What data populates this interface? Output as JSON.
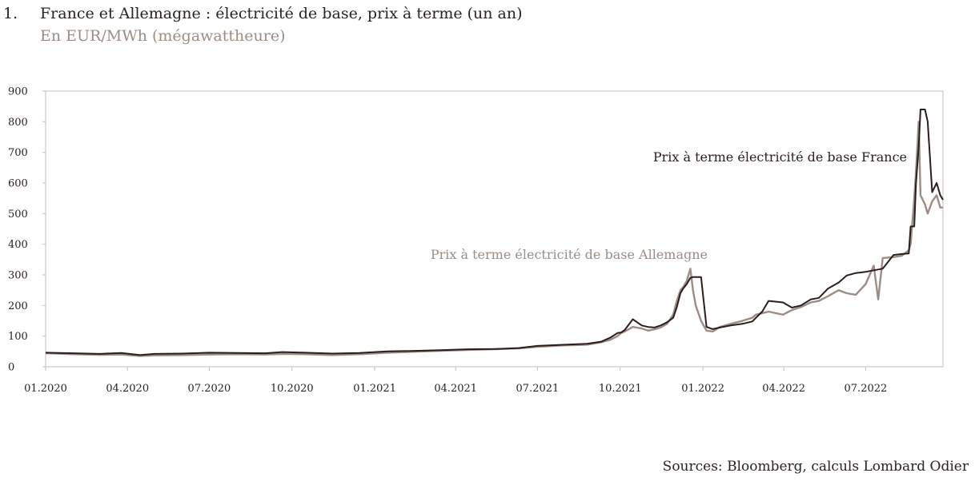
{
  "figure": {
    "number": "1.",
    "title": "France et Allemagne : électricité de base, prix à terme (un an)",
    "subtitle": "En EUR/MWh (mégawattheure)",
    "source": "Sources: Bloomberg, calculs Lombard Odier"
  },
  "chart_data": {
    "type": "line",
    "title": "France et Allemagne : électricité de base, prix à terme (un an)",
    "ylabel": "En EUR/MWh (mégawattheure)",
    "xlim": [
      "2020-01",
      "2022-09-25"
    ],
    "ylim": [
      0,
      900
    ],
    "yticks": [
      0,
      100,
      200,
      300,
      400,
      500,
      600,
      700,
      800,
      900
    ],
    "xticks": [
      "01.2020",
      "04.2020",
      "07.2020",
      "10.2020",
      "01.2021",
      "04.2021",
      "07.2021",
      "10.2021",
      "01.2022",
      "04.2022",
      "07.2022"
    ],
    "grid": false,
    "colors": {
      "france": "#2b1d1b",
      "allemagne": "#9b8d86",
      "axis": "#c9bdb6"
    },
    "series": [
      {
        "name": "Prix à terme électricité de base France",
        "x": [
          "2020-01-01",
          "2020-02-01",
          "2020-03-01",
          "2020-03-25",
          "2020-04-15",
          "2020-05-01",
          "2020-06-01",
          "2020-07-01",
          "2020-08-01",
          "2020-09-01",
          "2020-09-20",
          "2020-10-15",
          "2020-11-15",
          "2020-12-15",
          "2021-01-15",
          "2021-02-15",
          "2021-03-15",
          "2021-04-15",
          "2021-05-15",
          "2021-06-10",
          "2021-07-01",
          "2021-08-01",
          "2021-08-25",
          "2021-09-10",
          "2021-09-20",
          "2021-09-28",
          "2021-10-02",
          "2021-10-06",
          "2021-10-15",
          "2021-10-25",
          "2021-11-01",
          "2021-11-08",
          "2021-11-15",
          "2021-11-22",
          "2021-11-29",
          "2021-12-03",
          "2021-12-07",
          "2021-12-10",
          "2021-12-14",
          "2021-12-18",
          "2021-12-21",
          "2021-12-24",
          "2021-12-30",
          "2022-01-05",
          "2022-01-12",
          "2022-01-20",
          "2022-02-01",
          "2022-02-14",
          "2022-02-25",
          "2022-03-01",
          "2022-03-08",
          "2022-03-15",
          "2022-03-31",
          "2022-04-10",
          "2022-04-20",
          "2022-05-01",
          "2022-05-10",
          "2022-05-20",
          "2022-06-01",
          "2022-06-10",
          "2022-06-20",
          "2022-07-01",
          "2022-07-10",
          "2022-07-20",
          "2022-08-01",
          "2022-08-10",
          "2022-08-18",
          "2022-08-20",
          "2022-08-24",
          "2022-08-26",
          "2022-08-29",
          "2022-08-31",
          "2022-09-05",
          "2022-09-08",
          "2022-09-13",
          "2022-09-18",
          "2022-09-22",
          "2022-09-25"
        ],
        "values": [
          46,
          44,
          42,
          45,
          38,
          42,
          43,
          46,
          45,
          44,
          48,
          46,
          43,
          45,
          50,
          52,
          54,
          57,
          58,
          61,
          68,
          72,
          75,
          82,
          95,
          110,
          112,
          120,
          155,
          135,
          130,
          128,
          135,
          145,
          160,
          195,
          240,
          255,
          270,
          290,
          293,
          293,
          293,
          130,
          123,
          128,
          135,
          140,
          148,
          160,
          180,
          215,
          210,
          193,
          200,
          220,
          225,
          255,
          275,
          298,
          306,
          310,
          315,
          320,
          365,
          368,
          370,
          458,
          458,
          600,
          720,
          840,
          840,
          800,
          570,
          600,
          560,
          545
        ]
      },
      {
        "name": "Prix à terme électricité de base Allemagne",
        "x": [
          "2020-01-01",
          "2020-02-01",
          "2020-03-01",
          "2020-03-25",
          "2020-04-15",
          "2020-05-01",
          "2020-06-01",
          "2020-07-01",
          "2020-08-01",
          "2020-09-01",
          "2020-09-20",
          "2020-10-15",
          "2020-11-15",
          "2020-12-15",
          "2021-01-15",
          "2021-02-15",
          "2021-03-15",
          "2021-04-15",
          "2021-05-15",
          "2021-06-10",
          "2021-07-01",
          "2021-08-01",
          "2021-08-25",
          "2021-09-10",
          "2021-09-20",
          "2021-09-28",
          "2021-10-02",
          "2021-10-06",
          "2021-10-15",
          "2021-10-25",
          "2021-11-01",
          "2021-11-08",
          "2021-11-15",
          "2021-11-22",
          "2021-11-29",
          "2021-12-03",
          "2021-12-07",
          "2021-12-10",
          "2021-12-14",
          "2021-12-18",
          "2021-12-21",
          "2021-12-24",
          "2021-12-30",
          "2022-01-05",
          "2022-01-12",
          "2022-01-20",
          "2022-02-01",
          "2022-02-14",
          "2022-02-25",
          "2022-03-01",
          "2022-03-08",
          "2022-03-15",
          "2022-03-31",
          "2022-04-10",
          "2022-04-20",
          "2022-05-01",
          "2022-05-10",
          "2022-05-20",
          "2022-06-01",
          "2022-06-10",
          "2022-06-20",
          "2022-07-01",
          "2022-07-10",
          "2022-07-15",
          "2022-07-20",
          "2022-08-01",
          "2022-08-10",
          "2022-08-18",
          "2022-08-20",
          "2022-08-24",
          "2022-08-26",
          "2022-08-29",
          "2022-08-31",
          "2022-09-05",
          "2022-09-08",
          "2022-09-13",
          "2022-09-18",
          "2022-09-22",
          "2022-09-25"
        ],
        "values": [
          44,
          41,
          39,
          40,
          35,
          37,
          38,
          40,
          41,
          40,
          42,
          41,
          38,
          41,
          46,
          49,
          52,
          55,
          57,
          60,
          65,
          70,
          72,
          80,
          88,
          100,
          110,
          115,
          130,
          125,
          118,
          122,
          128,
          140,
          170,
          215,
          250,
          260,
          280,
          320,
          250,
          200,
          150,
          118,
          115,
          130,
          140,
          150,
          160,
          170,
          175,
          180,
          170,
          185,
          195,
          210,
          215,
          230,
          250,
          240,
          235,
          270,
          330,
          220,
          355,
          358,
          362,
          380,
          400,
          550,
          640,
          800,
          560,
          530,
          500,
          540,
          560,
          520,
          520
        ]
      }
    ],
    "annotations": [
      {
        "text": "Prix à terme électricité de base France",
        "series": "Prix à terme électricité de base France"
      },
      {
        "text": "Prix à terme électricité de base Allemagne",
        "series": "Prix à terme électricité de base Allemagne"
      }
    ]
  }
}
